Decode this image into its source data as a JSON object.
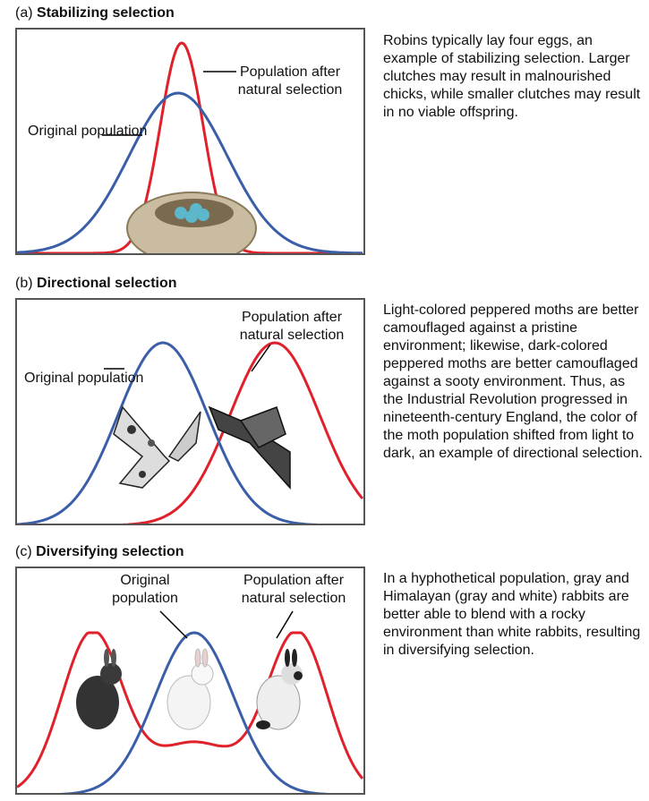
{
  "panels": [
    {
      "letter": "(a)",
      "title": "Stabilizing selection",
      "original_label": "Original population",
      "after_label": "Population after natural selection",
      "description": "Robins typically lay four eggs, an example of stabilizing selection. Larger clutches may result in malnourished chicks, while smaller clutches may result in no viable offspring."
    },
    {
      "letter": "(b)",
      "title": "Directional selection",
      "original_label": "Original population",
      "after_label": "Population after natural selection",
      "description": "Light-colored peppered moths are better camouflaged against a pristine environment; likewise, dark-colored peppered moths are better camouflaged against a sooty environment. Thus, as the Industrial Revolution progressed in nineteenth-century England, the color of the moth population shifted from light to dark, an example of directional selection."
    },
    {
      "letter": "(c)",
      "title": "Diversifying selection",
      "original_label": "Original population",
      "after_label": "Population after natural selection",
      "description": "In a hyphothetical population, gray and Himalayan (gray and white) rabbits are better able to blend with a rocky environment than white rabbits, resulting in diversifying selection."
    }
  ],
  "colors": {
    "original": "#3a5ea8",
    "after": "#e0202a"
  }
}
